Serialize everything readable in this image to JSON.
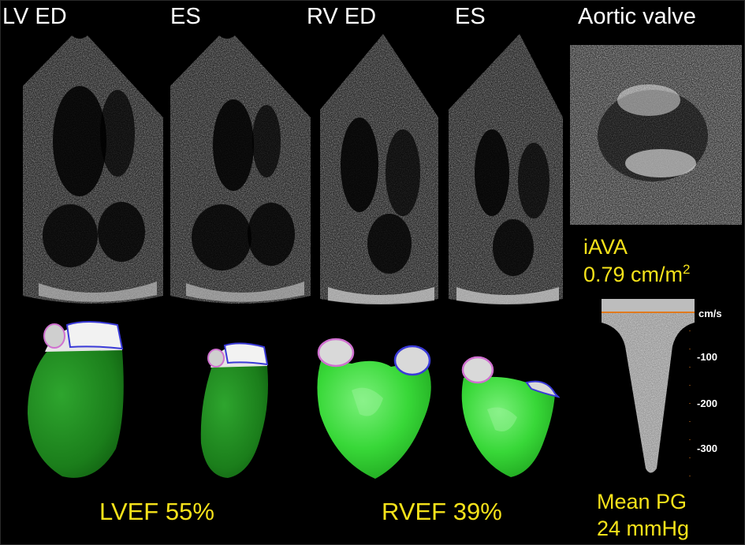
{
  "labels": {
    "lv_ed": "LV ED",
    "lv_es": "ES",
    "rv_ed": "RV ED",
    "rv_es": "ES",
    "aortic_valve": "Aortic valve"
  },
  "metrics": {
    "iava_label": "iAVA",
    "iava_value": "0.79 cm/m",
    "iava_exp": "2",
    "lvef": "LVEF 55%",
    "rvef": "RVEF 39%",
    "mean_pg_label": "Mean PG",
    "mean_pg_value": "24 mmHg"
  },
  "doppler": {
    "unit": "cm/s",
    "ticks": [
      "-100",
      "-200",
      "-300"
    ]
  },
  "colors": {
    "text": "#ffffff",
    "yellow": "#f5e21a",
    "lv_green": "#1f8a1f",
    "rv_green": "#37d637",
    "cut_ring_pink": "#d070d0",
    "cut_ring_blue": "#3a3ad8",
    "baseline_orange": "#e07a1e"
  }
}
